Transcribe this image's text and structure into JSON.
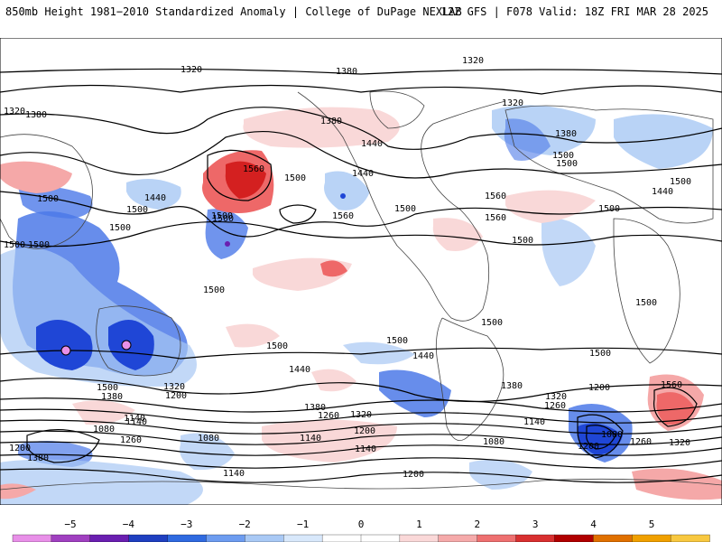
{
  "header": {
    "title": "850mb Height 1981−2010 Standardized Anomaly | College of DuPage NEXLAB",
    "run_info": "12Z GFS | F078 Valid: 18Z FRI MAR 28 2025"
  },
  "colors": {
    "land_border": "#444444",
    "contour": "#000000",
    "neg_strong": "#1f46d6",
    "neg_mid": "#4c79e8",
    "neg_light": "#a8c8f4",
    "neg_faint": "#d4e4fa",
    "pos_faint": "#f9d8d8",
    "pos_light": "#f5a8a8",
    "pos_mid": "#ee6868",
    "pos_strong": "#d42020"
  },
  "contour_labels": [
    "1320",
    "1380",
    "1320",
    "1320",
    "1380",
    "1380",
    "1560",
    "1440",
    "1440",
    "1320",
    "1380",
    "1500",
    "1500",
    "1440",
    "1500",
    "1500",
    "1500",
    "1560",
    "1500",
    "1500",
    "1560",
    "1500",
    "1500",
    "1440",
    "1500",
    "1500",
    "1500",
    "1560",
    "1500",
    "1500",
    "1440",
    "1500",
    "1500",
    "1500",
    "1500",
    "1500",
    "1500",
    "1440",
    "1560",
    "1500",
    "1380",
    "1320",
    "1200",
    "1380",
    "1260",
    "1320",
    "1380",
    "1320",
    "1260",
    "1200",
    "1140",
    "1080",
    "1140",
    "1080",
    "1200",
    "1260",
    "1140",
    "1140",
    "1140",
    "1140",
    "1080",
    "1080",
    "1200",
    "1200",
    "1260",
    "1320",
    "1380",
    "1200"
  ],
  "colorbar": {
    "ticks": [
      "−5",
      "−4",
      "−3",
      "−2",
      "−1",
      "0",
      "1",
      "2",
      "3",
      "4",
      "5"
    ],
    "colors": [
      "#e890e8",
      "#a040c0",
      "#6a1fb0",
      "#1f3fc0",
      "#2f6ae0",
      "#6d9cf0",
      "#a9c9f5",
      "#d8e8fb",
      "#ffffff",
      "#ffffff",
      "#fad8d8",
      "#f5aaaa",
      "#ee7070",
      "#d83030",
      "#b00000",
      "#e07000",
      "#f0a000",
      "#f8c840"
    ]
  }
}
